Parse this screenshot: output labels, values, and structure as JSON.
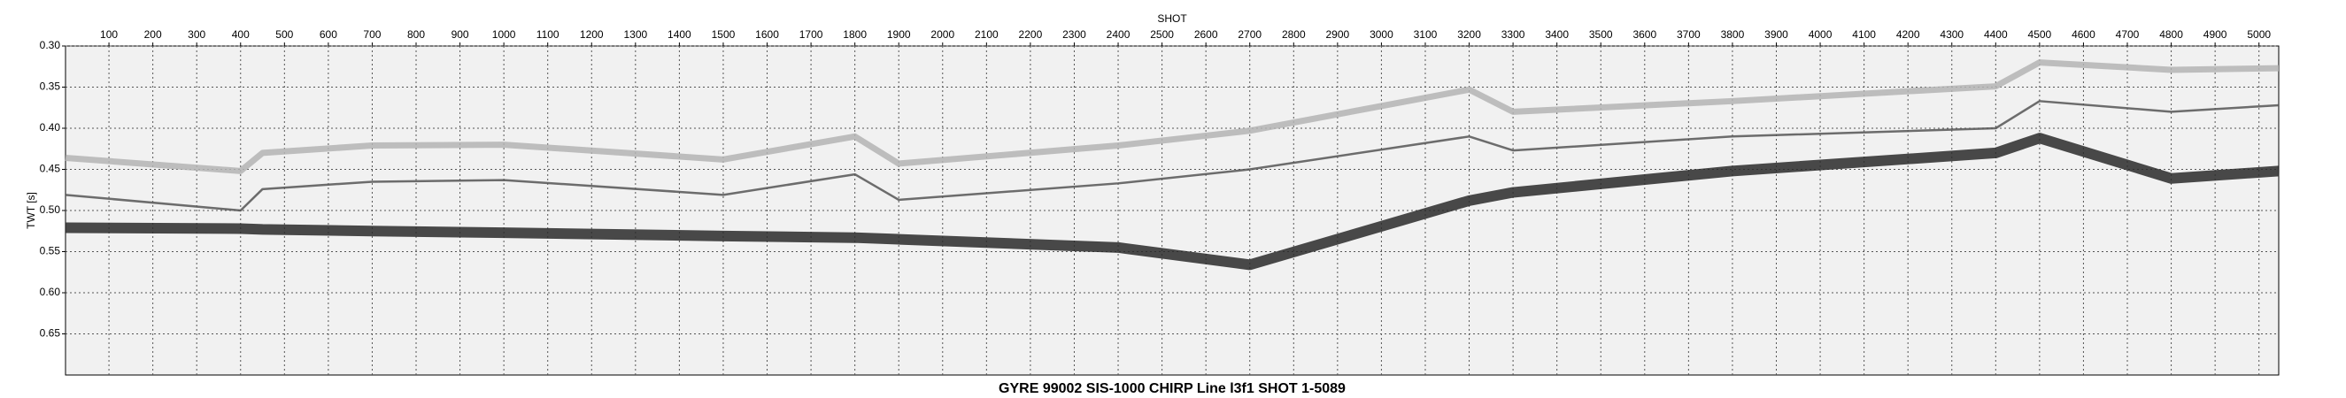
{
  "chart_data": {
    "type": "line",
    "title": "GYRE 99002 SIS-1000 CHIRP Line l3f1 SHOT 1-5089",
    "x_label": "SHOT",
    "y_label": "TWT [s]",
    "x": [
      1,
      400,
      450,
      700,
      1000,
      1500,
      1800,
      1900,
      2400,
      2700,
      3200,
      3300,
      3800,
      4400,
      4500,
      4800,
      5045
    ],
    "series": [
      {
        "color": "#b4b4b4",
        "values": [
          0.436,
          0.452,
          0.43,
          0.421,
          0.42,
          0.438,
          0.41,
          0.443,
          0.421,
          0.403,
          0.353,
          0.38,
          0.367,
          0.349,
          0.32,
          0.329,
          0.327
        ]
      },
      {
        "color": "#555555",
        "values": [
          0.481,
          0.5,
          0.474,
          0.465,
          0.463,
          0.481,
          0.456,
          0.487,
          0.467,
          0.45,
          0.41,
          0.427,
          0.41,
          0.4,
          0.367,
          0.38,
          0.372
        ]
      },
      {
        "color": "#2a2a2a",
        "values": [
          0.521,
          0.522,
          0.523,
          0.525,
          0.527,
          0.531,
          0.533,
          0.535,
          0.545,
          0.566,
          0.488,
          0.478,
          0.452,
          0.43,
          0.412,
          0.461,
          0.452
        ]
      }
    ],
    "xlim": [
      1,
      5045
    ],
    "ylim": [
      0.3,
      0.7
    ],
    "y_inverted": true,
    "xticks": [
      100,
      200,
      300,
      400,
      500,
      600,
      700,
      800,
      900,
      1000,
      1100,
      1200,
      1300,
      1400,
      1500,
      1600,
      1700,
      1800,
      1900,
      2000,
      2100,
      2200,
      2300,
      2400,
      2500,
      2600,
      2700,
      2800,
      2900,
      3000,
      3100,
      3200,
      3300,
      3400,
      3500,
      3600,
      3700,
      3800,
      3900,
      4000,
      4100,
      4200,
      4300,
      4400,
      4500,
      4600,
      4700,
      4800,
      4900,
      5000
    ],
    "yticks": [
      {
        "value": 0.3,
        "label": "0.30"
      },
      0.35,
      {
        "value": 0.4,
        "label": "0.40"
      },
      0.45,
      {
        "value": 0.5,
        "label": "0.50"
      },
      0.55,
      {
        "value": 0.6,
        "label": "0.60"
      },
      0.65
    ],
    "grid": true
  }
}
